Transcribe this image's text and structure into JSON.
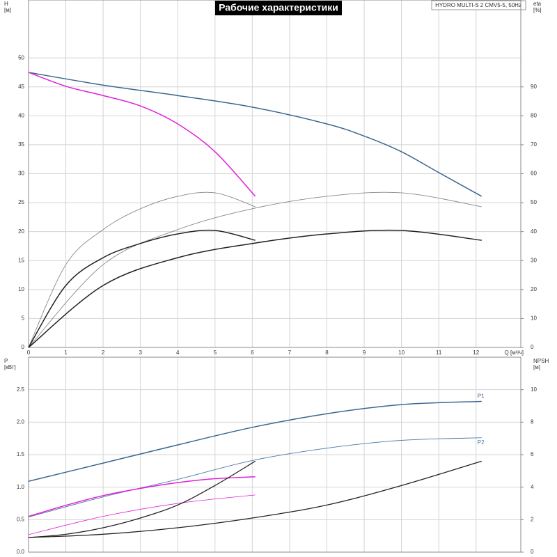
{
  "chart_data": [
    {
      "type": "line",
      "title": "Рабочие характеристики",
      "subtitle": "HYDRO MULTI-S 2 CMV5-5, 50Hz",
      "ylabel": "H",
      "yunit": "[м]",
      "y2label": "eta",
      "y2unit": "[%]",
      "xlabel": "Q [м³/ч]",
      "xlim": [
        0,
        13.2
      ],
      "xticks": [
        0,
        1,
        2,
        3,
        4,
        5,
        6,
        7,
        8,
        9,
        10,
        11,
        12
      ],
      "ylim": [
        0,
        60
      ],
      "yticks": [
        0,
        5,
        10,
        15,
        20,
        25,
        30,
        35,
        40,
        45,
        50
      ],
      "y2lim": [
        0,
        120
      ],
      "y2ticks": [
        0,
        10,
        20,
        30,
        40,
        50,
        60,
        70,
        80,
        90
      ],
      "grid": true,
      "series": [
        {
          "color": "#3a6690",
          "width": 1.5,
          "x": [
            0,
            2,
            4,
            6,
            8,
            9,
            10,
            11,
            12.15
          ],
          "values": [
            47.5,
            45.3,
            43.5,
            41.5,
            38.6,
            36.5,
            33.8,
            30.2,
            26.1
          ]
        },
        {
          "color": "#e020d8",
          "width": 1.5,
          "x": [
            0,
            1,
            2,
            3,
            4,
            5,
            6.08
          ],
          "values": [
            47.5,
            45.1,
            43.5,
            41.7,
            38.6,
            33.8,
            26.1
          ]
        },
        {
          "color": "#888888",
          "width": 0.9,
          "axis": "y2",
          "x": [
            0,
            1,
            2,
            3,
            4,
            5,
            6.08
          ],
          "values": [
            0,
            28.6,
            40.7,
            47.9,
            52.2,
            53.4,
            48.6
          ]
        },
        {
          "color": "#888888",
          "width": 0.9,
          "axis": "y2",
          "x": [
            0,
            2,
            4,
            6,
            8,
            10,
            12.15
          ],
          "values": [
            0,
            28.6,
            40.7,
            47.9,
            52.2,
            53.4,
            48.6
          ]
        },
        {
          "color": "#222222",
          "width": 1.5,
          "axis": "y2",
          "x": [
            0,
            1,
            2,
            3,
            4,
            5,
            6.08
          ],
          "values": [
            0,
            21.4,
            31,
            35.9,
            39.2,
            40.4,
            37
          ]
        },
        {
          "color": "#222222",
          "width": 1.5,
          "axis": "y2",
          "x": [
            0,
            2,
            4,
            6,
            8,
            10,
            12.15
          ],
          "values": [
            0,
            21.4,
            31,
            35.9,
            39.2,
            40.4,
            37
          ]
        }
      ]
    },
    {
      "type": "line",
      "ylabel": "P",
      "yunit": "[кВт]",
      "y2label": "NPSH",
      "y2unit": "[м]",
      "xlim": [
        0,
        13.2
      ],
      "ylim": [
        0,
        3
      ],
      "yticks": [
        {
          "value": 0,
          "label": "0.0"
        },
        0.5,
        {
          "value": 1,
          "label": "1.0"
        },
        1.5,
        {
          "value": 2,
          "label": "2.0"
        },
        2.5
      ],
      "y2lim": [
        0,
        12
      ],
      "y2ticks": [
        0,
        2,
        4,
        6,
        8,
        10
      ],
      "grid": true,
      "series": [
        {
          "name": "P1",
          "color": "#3a6690",
          "width": 1.5,
          "x": [
            0,
            2,
            4,
            6,
            8,
            10,
            12.15
          ],
          "values": [
            1.09,
            1.37,
            1.65,
            1.92,
            2.13,
            2.27,
            2.32
          ]
        },
        {
          "name": "P2",
          "color": "#4a78a8",
          "width": 0.9,
          "x": [
            0,
            2,
            4,
            6,
            8,
            10,
            12.15
          ],
          "values": [
            0.54,
            0.85,
            1.12,
            1.41,
            1.6,
            1.72,
            1.76
          ]
        },
        {
          "color": "#e020d8",
          "width": 1.5,
          "x": [
            0,
            1,
            2,
            3,
            4,
            5,
            6.08
          ],
          "values": [
            0.55,
            0.72,
            0.87,
            0.98,
            1.07,
            1.13,
            1.16
          ]
        },
        {
          "color": "#e020d8",
          "width": 0.8,
          "x": [
            0,
            2,
            4,
            6.08
          ],
          "values": [
            0.27,
            0.55,
            0.75,
            0.88
          ]
        },
        {
          "color": "#222222",
          "width": 1.3,
          "axis": "y2",
          "x": [
            0,
            1,
            2,
            3,
            4,
            5,
            6.08
          ],
          "values": [
            0.9,
            1.1,
            1.5,
            2.1,
            2.9,
            4.1,
            5.6
          ]
        },
        {
          "color": "#222222",
          "width": 1.3,
          "axis": "y2",
          "x": [
            0,
            2,
            4,
            6,
            8,
            10,
            12.15
          ],
          "values": [
            0.9,
            1.1,
            1.5,
            2.1,
            2.9,
            4.1,
            5.6
          ]
        }
      ]
    }
  ]
}
